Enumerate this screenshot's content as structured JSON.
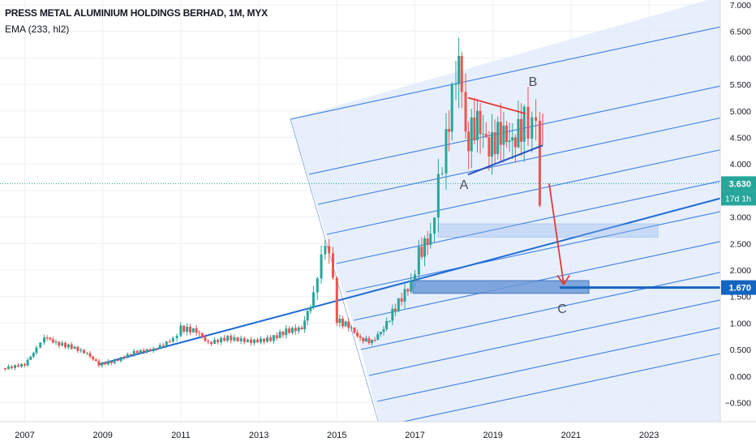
{
  "header": {
    "title": "PRESS METAL ALUMINIUM HOLDINGS BERHAD, 1M, MYX",
    "indicator": "EMA (233, hl2)"
  },
  "chart_data": {
    "type": "candlestick",
    "timeframe": "1M",
    "xlim": [
      2006.5,
      2025.3
    ],
    "ylim": [
      -0.75,
      7.0
    ],
    "x_ticks": [
      "2007",
      "2009",
      "2011",
      "2013",
      "2015",
      "2017",
      "2019",
      "2021",
      "2023"
    ],
    "y_ticks": [
      "7.000",
      "6.500",
      "6.000",
      "5.500",
      "5.000",
      "4.500",
      "4.000",
      "3.500",
      "3.000",
      "2.500",
      "2.000",
      "1.500",
      "1.000",
      "0.500",
      "0.000",
      "−0.500"
    ],
    "grid": true,
    "colors": {
      "up": "#26a69a",
      "down": "#ef5350",
      "trend": "#1e6bd6",
      "channel_fill": "#dfe9fb",
      "zone": "#8fb4ea",
      "target": "#1565c0",
      "projection": "#e53935"
    },
    "price_series": [
      {
        "year": 2006.5,
        "close": 0.15
      },
      {
        "year": 2007.0,
        "close": 0.22
      },
      {
        "year": 2007.3,
        "close": 0.52
      },
      {
        "year": 2007.5,
        "close": 0.75
      },
      {
        "year": 2007.8,
        "close": 0.62
      },
      {
        "year": 2008.2,
        "close": 0.55
      },
      {
        "year": 2008.6,
        "close": 0.42
      },
      {
        "year": 2008.9,
        "close": 0.22
      },
      {
        "year": 2009.3,
        "close": 0.28
      },
      {
        "year": 2009.8,
        "close": 0.45
      },
      {
        "year": 2010.3,
        "close": 0.5
      },
      {
        "year": 2010.8,
        "close": 0.7
      },
      {
        "year": 2011.0,
        "close": 0.9
      },
      {
        "year": 2011.4,
        "close": 0.85
      },
      {
        "year": 2011.7,
        "close": 0.62
      },
      {
        "year": 2012.2,
        "close": 0.72
      },
      {
        "year": 2012.8,
        "close": 0.65
      },
      {
        "year": 2013.3,
        "close": 0.7
      },
      {
        "year": 2013.7,
        "close": 0.85
      },
      {
        "year": 2014.1,
        "close": 0.9
      },
      {
        "year": 2014.4,
        "close": 1.5
      },
      {
        "year": 2014.6,
        "close": 2.3
      },
      {
        "year": 2014.8,
        "close": 2.45
      },
      {
        "year": 2015.0,
        "close": 1.05
      },
      {
        "year": 2015.3,
        "close": 0.95
      },
      {
        "year": 2015.6,
        "close": 0.7
      },
      {
        "year": 2015.9,
        "close": 0.65
      },
      {
        "year": 2016.2,
        "close": 0.9
      },
      {
        "year": 2016.5,
        "close": 1.3
      },
      {
        "year": 2016.9,
        "close": 1.75
      },
      {
        "year": 2017.1,
        "close": 2.3
      },
      {
        "year": 2017.4,
        "close": 2.65
      },
      {
        "year": 2017.6,
        "close": 3.6
      },
      {
        "year": 2017.8,
        "close": 4.5
      },
      {
        "year": 2017.95,
        "close": 5.2
      },
      {
        "year": 2018.05,
        "close": 5.75
      },
      {
        "year": 2018.2,
        "close": 5.7
      },
      {
        "year": 2018.3,
        "close": 4.4
      },
      {
        "year": 2018.6,
        "close": 4.8
      },
      {
        "year": 2018.9,
        "close": 4.3
      },
      {
        "year": 2019.2,
        "close": 4.6
      },
      {
        "year": 2019.5,
        "close": 4.4
      },
      {
        "year": 2019.8,
        "close": 4.8
      },
      {
        "year": 2020.0,
        "close": 4.7
      },
      {
        "year": 2020.1,
        "close": 4.85
      },
      {
        "year": 2020.2,
        "close": 3.3
      },
      {
        "year": 2020.3,
        "close": 3.63
      }
    ],
    "annotations": [
      "A",
      "B",
      "C"
    ],
    "price_labels": [
      {
        "text": "3.630",
        "sub": "17d 1h",
        "value": 3.63
      },
      {
        "text": "1.670",
        "value": 1.67
      }
    ]
  }
}
